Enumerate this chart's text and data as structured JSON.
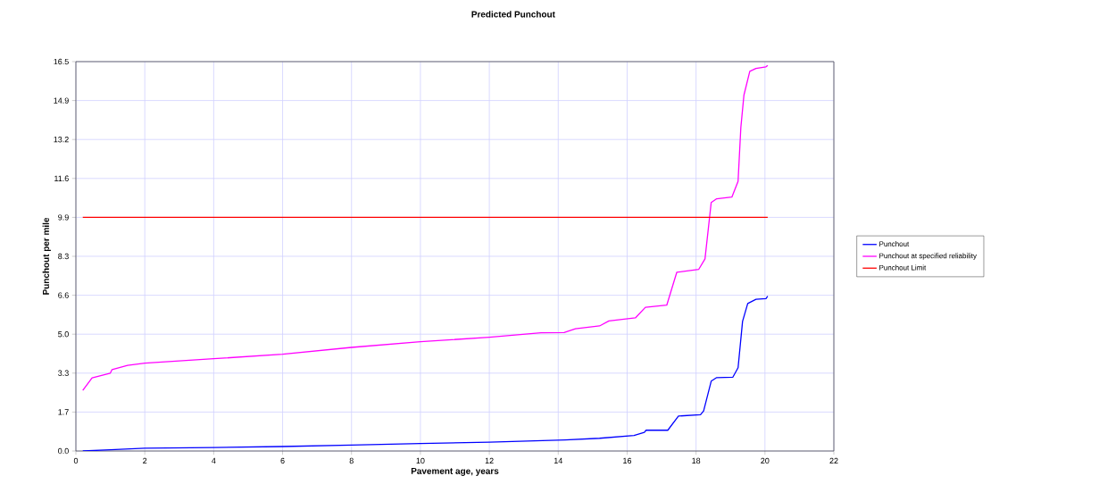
{
  "chart_data": {
    "type": "line",
    "title": "Predicted Punchout",
    "xlabel": "Pavement age, years",
    "ylabel": "Punchout per mile",
    "xlim": [
      0,
      22
    ],
    "xticks": [
      0,
      2,
      4,
      6,
      8,
      10,
      12,
      14,
      16,
      18,
      20,
      22
    ],
    "ylim": [
      0,
      16.5
    ],
    "yticks": [
      {
        "value": 0,
        "label": "0.0"
      },
      {
        "value": 1.65,
        "label": "1.7"
      },
      {
        "value": 3.3,
        "label": "3.3"
      },
      {
        "value": 4.95,
        "label": "5.0"
      },
      {
        "value": 6.6,
        "label": "6.6"
      },
      {
        "value": 8.25,
        "label": "8.3"
      },
      {
        "value": 9.9,
        "label": "9.9"
      },
      {
        "value": 11.55,
        "label": "11.6"
      },
      {
        "value": 13.2,
        "label": "13.2"
      },
      {
        "value": 14.85,
        "label": "14.9"
      },
      {
        "value": 16.5,
        "label": "16.5"
      }
    ],
    "grid": true,
    "legend": "right",
    "line_style": "solid",
    "series": [
      {
        "name": "Punchout",
        "color": "#0000ff",
        "x": [
          0.2,
          1,
          2,
          4,
          6,
          8,
          10,
          12,
          14.2,
          15.2,
          16.2,
          16.5,
          16.55,
          17.18,
          17.49,
          18.13,
          18.22,
          18.44,
          18.6,
          19.07,
          19.22,
          19.35,
          19.5,
          19.74,
          20.03,
          20.08
        ],
        "values": [
          0,
          0.05,
          0.12,
          0.15,
          0.19,
          0.25,
          0.32,
          0.37,
          0.47,
          0.54,
          0.66,
          0.79,
          0.88,
          0.88,
          1.48,
          1.54,
          1.7,
          2.96,
          3.11,
          3.13,
          3.53,
          5.49,
          6.25,
          6.43,
          6.46,
          6.56
        ]
      },
      {
        "name": "Punchout at specified reliability",
        "color": "#ff00ff",
        "x": [
          0.2,
          0.47,
          1,
          1.05,
          1.5,
          2,
          4,
          6,
          8,
          10,
          12,
          13.5,
          14.17,
          14.5,
          15.2,
          15.47,
          16.24,
          16.53,
          17.15,
          17.44,
          18.08,
          18.26,
          18.44,
          18.6,
          19.04,
          19.22,
          19.3,
          19.39,
          19.56,
          19.74,
          20.03,
          20.08
        ],
        "values": [
          2.57,
          3.1,
          3.3,
          3.45,
          3.63,
          3.72,
          3.91,
          4.1,
          4.39,
          4.63,
          4.82,
          5.01,
          5.02,
          5.18,
          5.3,
          5.51,
          5.64,
          6.09,
          6.18,
          7.57,
          7.7,
          8.14,
          10.53,
          10.69,
          10.76,
          11.43,
          13.7,
          15.08,
          16.09,
          16.21,
          16.28,
          16.34
        ]
      },
      {
        "name": "Punchout Limit",
        "color": "#ff0000",
        "x": [
          0.2,
          20.08
        ],
        "values": [
          9.9,
          9.9
        ]
      }
    ]
  }
}
